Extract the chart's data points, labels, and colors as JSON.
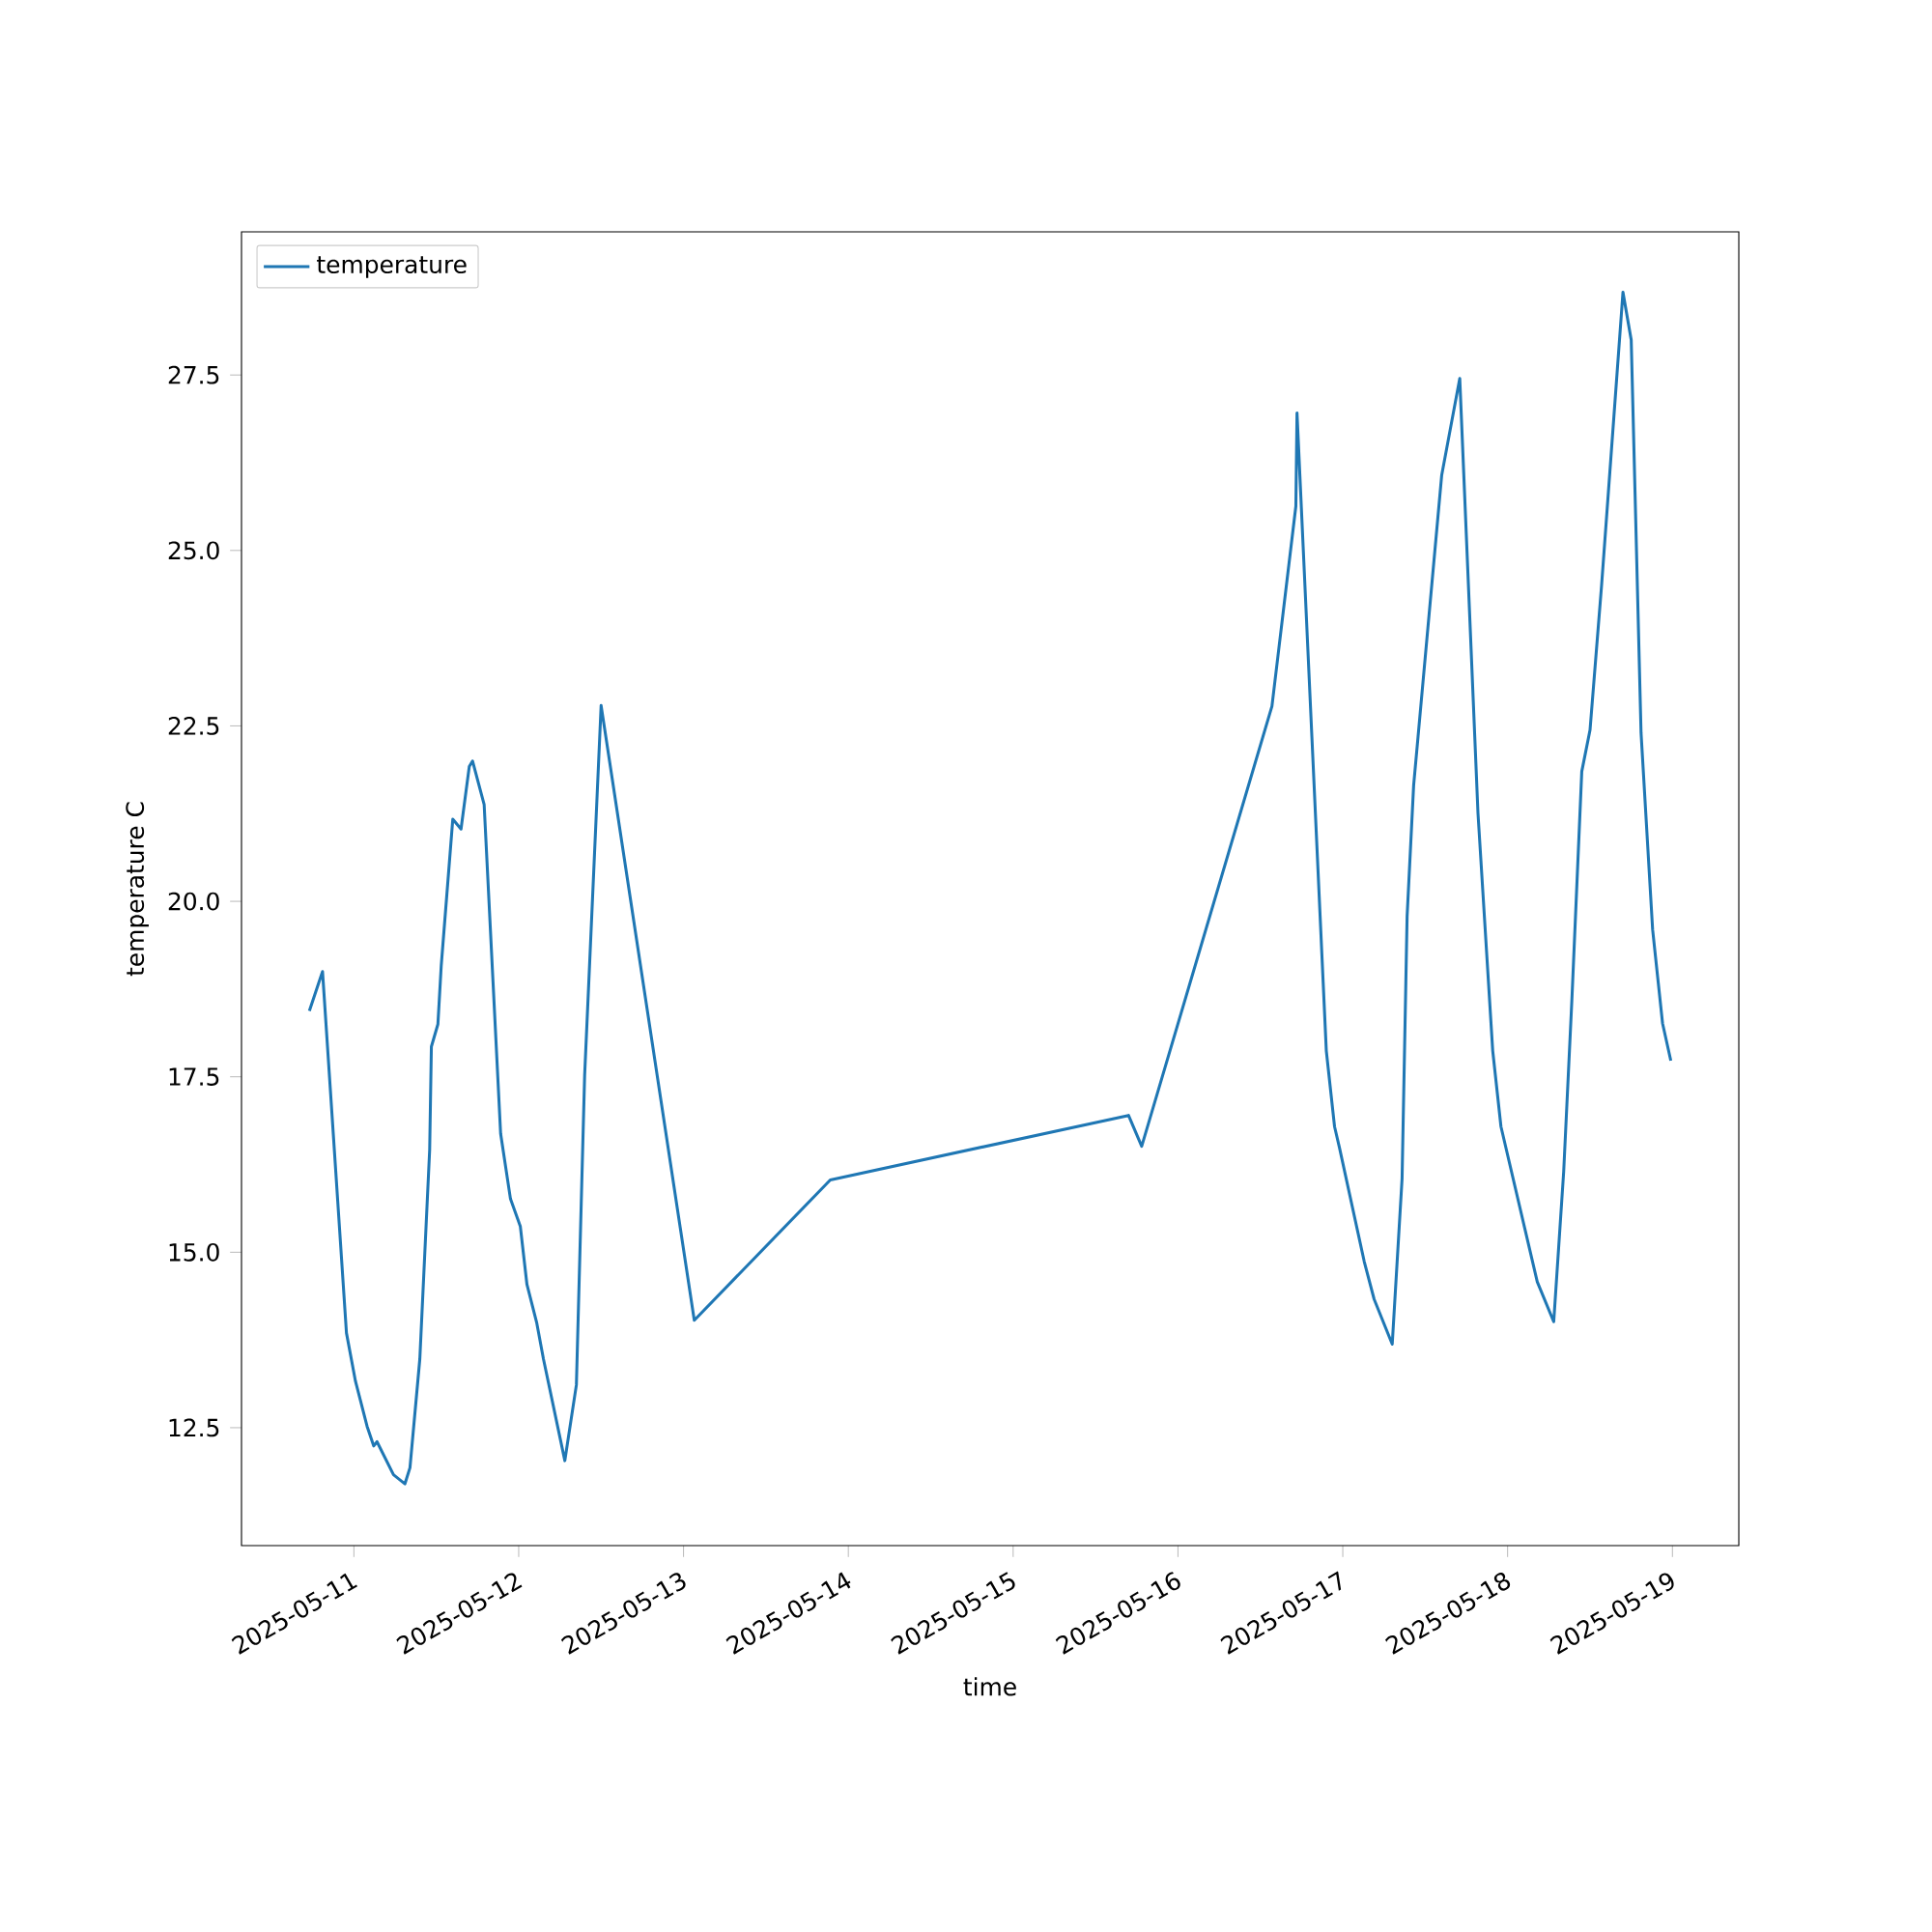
{
  "chart_data": {
    "type": "line",
    "xlabel": "time",
    "ylabel": "temperature C",
    "legend": "top left",
    "x": [
      "2025-05-10T17:31",
      "2025-05-10T19:26",
      "2025-05-10T22:55",
      "2025-05-11T00:14",
      "2025-05-11T01:55",
      "2025-05-11T02:53",
      "2025-05-11T03:22",
      "2025-05-11T05:46",
      "2025-05-11T07:26",
      "2025-05-11T08:10",
      "2025-05-11T09:36",
      "2025-05-11T11:02",
      "2025-05-11T11:17",
      "2025-05-11T12:14",
      "2025-05-11T12:43",
      "2025-05-11T14:24",
      "2025-05-11T15:36",
      "2025-05-11T16:48",
      "2025-05-11T17:17",
      "2025-05-11T18:58",
      "2025-05-11T21:22",
      "2025-05-11T22:48",
      "2025-05-12T00:14",
      "2025-05-12T01:12",
      "2025-05-12T02:38",
      "2025-05-12T03:36",
      "2025-05-12T06:43",
      "2025-05-12T08:24",
      "2025-05-12T09:36",
      "2025-05-12T12:00",
      "2025-05-13T01:34",
      "2025-05-13T21:22",
      "2025-05-15T16:48",
      "2025-05-15T18:43",
      "2025-05-16T13:41",
      "2025-05-16T17:10",
      "2025-05-16T17:20",
      "2025-05-16T21:36",
      "2025-05-16T22:48",
      "2025-05-16T23:31",
      "2025-05-17T03:07",
      "2025-05-17T04:34",
      "2025-05-17T07:12",
      "2025-05-17T08:38",
      "2025-05-17T09:22",
      "2025-05-17T10:19",
      "2025-05-17T14:24",
      "2025-05-17T17:02",
      "2025-05-17T19:41",
      "2025-05-17T21:50",
      "2025-05-17T23:02",
      "2025-05-18T04:19",
      "2025-05-18T06:43",
      "2025-05-18T08:10",
      "2025-05-18T09:22",
      "2025-05-18T10:48",
      "2025-05-18T12:00",
      "2025-05-18T13:41",
      "2025-05-18T16:48",
      "2025-05-18T18:00",
      "2025-05-18T19:26",
      "2025-05-18T21:07",
      "2025-05-18T22:34",
      "2025-05-18T23:46"
    ],
    "series": [
      {
        "name": "temperature",
        "color": "#1f77b4",
        "values": [
          18.44,
          19.0,
          13.85,
          13.16,
          12.52,
          12.24,
          12.3,
          11.83,
          11.7,
          11.93,
          13.48,
          16.46,
          17.93,
          18.25,
          19.08,
          21.17,
          21.03,
          21.92,
          22.0,
          21.38,
          16.69,
          15.76,
          15.37,
          14.54,
          13.99,
          13.48,
          12.03,
          13.11,
          17.52,
          22.79,
          14.03,
          16.03,
          16.95,
          16.51,
          22.78,
          25.63,
          26.96,
          17.87,
          16.79,
          16.49,
          14.87,
          14.33,
          13.69,
          16.05,
          19.79,
          21.65,
          26.07,
          27.45,
          21.26,
          17.87,
          16.79,
          14.58,
          14.01,
          16.15,
          18.61,
          21.85,
          22.44,
          24.5,
          28.68,
          28.0,
          22.4,
          19.6,
          18.26,
          17.73
        ]
      }
    ],
    "xlim": [
      "2025-05-10T07:38",
      "2025-05-19T09:40"
    ],
    "ylim": [
      10.82,
      29.54
    ],
    "xticks": [
      "2025-05-11",
      "2025-05-12",
      "2025-05-13",
      "2025-05-14",
      "2025-05-15",
      "2025-05-16",
      "2025-05-17",
      "2025-05-18",
      "2025-05-19"
    ],
    "yticks": [
      {
        "value": 12.5,
        "label": "12.5"
      },
      {
        "value": 15.0,
        "label": "15.0"
      },
      {
        "value": 17.5,
        "label": "17.5"
      },
      {
        "value": 20.0,
        "label": "20.0"
      },
      {
        "value": 22.5,
        "label": "22.5"
      },
      {
        "value": 25.0,
        "label": "25.0"
      },
      {
        "value": 27.5,
        "label": "27.5"
      }
    ]
  }
}
